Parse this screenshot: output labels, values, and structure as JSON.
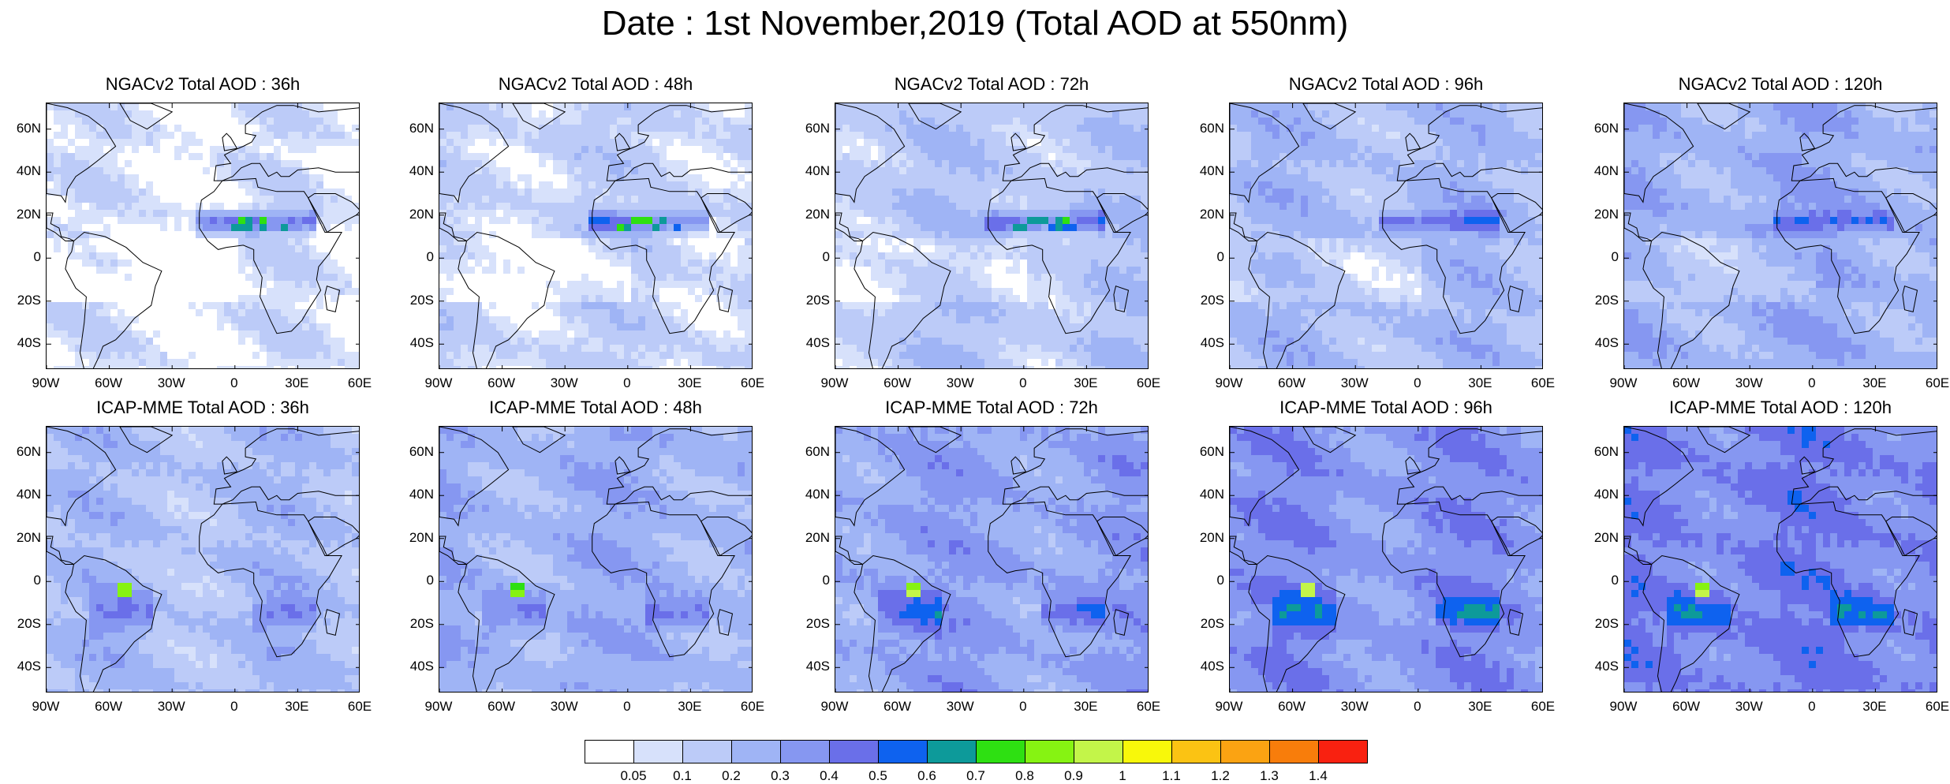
{
  "title": "Date : 1st November,2019 (Total AOD at 550nm)",
  "lat_ticks": [
    "60N",
    "40N",
    "20N",
    "0",
    "20S",
    "40S"
  ],
  "lon_ticks": [
    "90W",
    "60W",
    "30W",
    "0",
    "30E",
    "60E"
  ],
  "domain": {
    "lon_range": [
      -90,
      60
    ],
    "lat_range": [
      -52,
      72
    ]
  },
  "rows": [
    {
      "model": "NGACv2",
      "panels": [
        {
          "title": "NGACv2 Total AOD : 36h",
          "lead": "36h"
        },
        {
          "title": "NGACv2 Total AOD : 48h",
          "lead": "48h"
        },
        {
          "title": "NGACv2 Total AOD : 72h",
          "lead": "72h"
        },
        {
          "title": "NGACv2 Total AOD : 96h",
          "lead": "96h"
        },
        {
          "title": "NGACv2 Total AOD : 120h",
          "lead": "120h"
        }
      ]
    },
    {
      "model": "ICAP-MME",
      "panels": [
        {
          "title": "ICAP-MME Total AOD : 36h",
          "lead": "36h"
        },
        {
          "title": "ICAP-MME Total AOD : 48h",
          "lead": "48h"
        },
        {
          "title": "ICAP-MME Total AOD : 72h",
          "lead": "72h"
        },
        {
          "title": "ICAP-MME Total AOD : 96h",
          "lead": "96h"
        },
        {
          "title": "ICAP-MME Total AOD : 120h",
          "lead": "120h"
        }
      ]
    }
  ],
  "colorbar": {
    "labels": [
      "0.05",
      "0.1",
      "0.2",
      "0.3",
      "0.4",
      "0.5",
      "0.6",
      "0.7",
      "0.8",
      "0.9",
      "1",
      "1.1",
      "1.2",
      "1.3",
      "1.4"
    ],
    "colors": [
      "#ffffff",
      "#d7e1fb",
      "#bccbf8",
      "#9fb4f5",
      "#8697f1",
      "#6a6fe9",
      "#0e62ef",
      "#0d9a9a",
      "#2ee012",
      "#86f312",
      "#c3f549",
      "#f8f80a",
      "#fbc313",
      "#fba312",
      "#f87d0b",
      "#f92110"
    ]
  },
  "colors": {
    "land_outline": "#000000",
    "background_low": "#ffffff"
  }
}
